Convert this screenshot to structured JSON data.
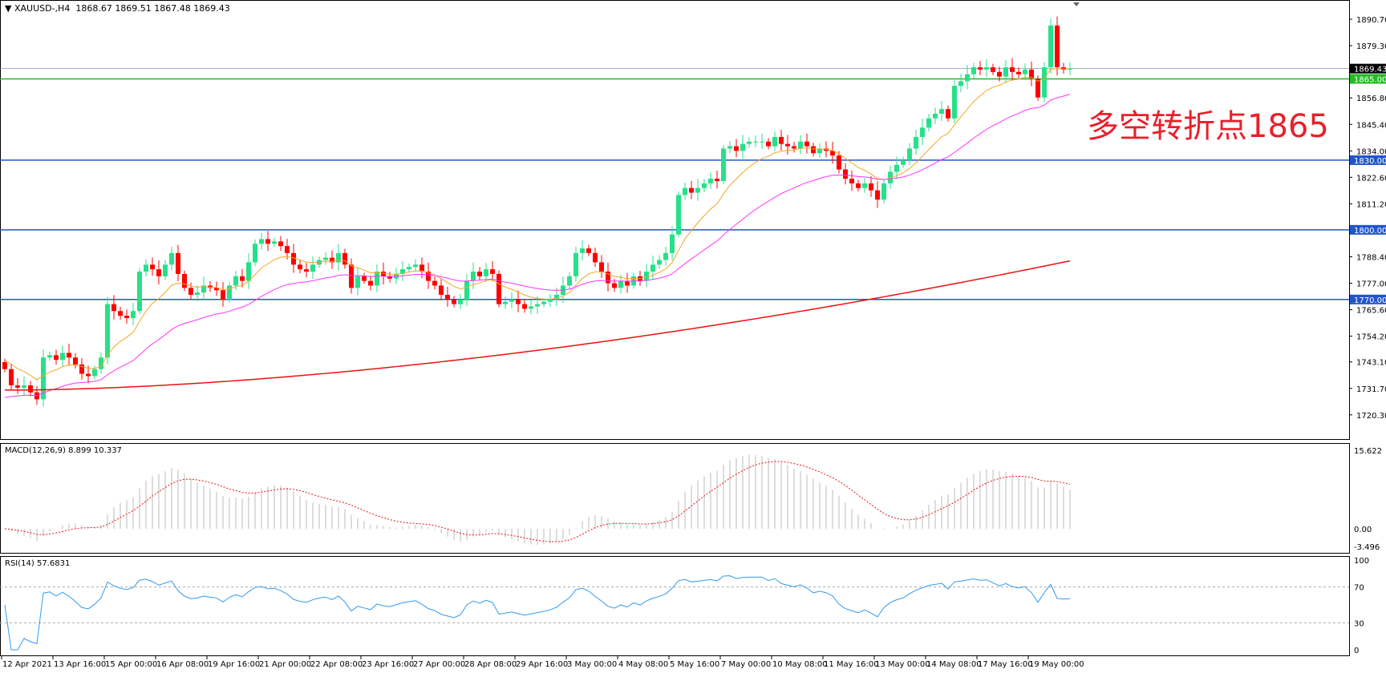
{
  "header": {
    "symbol": "XAUUSD-,H4",
    "ohlc": "1868.67 1869.51 1867.48 1869.43",
    "menu_icon": "triangle-down-icon"
  },
  "annotation": "多空转折点1865",
  "colors": {
    "bull": "#26e08a",
    "bear": "#ff0000",
    "ma_fast": "#f5a623",
    "ma_mid": "#ff33ff",
    "ma_slow": "#ee1111",
    "support": "#2255cc",
    "pivot": "#22bb22",
    "rsi": "#3399ee",
    "macd_signal": "#ee1111",
    "macd_hist": "#bbbbbb"
  },
  "price_axis": {
    "ticks": [
      "1890.70",
      "1879.30",
      "1856.80",
      "1845.40",
      "1834.00",
      "1822.60",
      "1811.20",
      "1788.40",
      "1777.00",
      "1765.60",
      "1754.20",
      "1743.10",
      "1731.70",
      "1720.30"
    ],
    "current_price": "1869.43"
  },
  "levels": [
    {
      "value": 1865,
      "label": "1865.00",
      "type": "pivot"
    },
    {
      "value": 1830,
      "label": "1830.00",
      "type": "support"
    },
    {
      "value": 1800,
      "label": "1800.00",
      "type": "support"
    },
    {
      "value": 1770,
      "label": "1770.00",
      "type": "support"
    }
  ],
  "macd": {
    "label": "MACD(12,26,9) 8.899 10.337",
    "ticks": [
      "15.622",
      "0.00",
      "-3.496"
    ]
  },
  "rsi": {
    "label": "RSI(14) 57.6831",
    "ticks": [
      "100",
      "70",
      "30",
      "0"
    ]
  },
  "time_axis": [
    "12 Apr 2021",
    "13 Apr 16:00",
    "15 Apr 00:00",
    "16 Apr 08:00",
    "19 Apr 16:00",
    "21 Apr 00:00",
    "22 Apr 08:00",
    "23 Apr 16:00",
    "27 Apr 00:00",
    "28 Apr 08:00",
    "29 Apr 16:00",
    "3 May 00:00",
    "4 May 08:00",
    "5 May 16:00",
    "7 May 00:00",
    "10 May 08:00",
    "11 May 16:00",
    "13 May 00:00",
    "14 May 08:00",
    "17 May 16:00",
    "19 May 00:00"
  ],
  "chart_data": {
    "type": "candlestick",
    "timeframe": "H4",
    "ylim": [
      1720.3,
      1890.7
    ],
    "closes": [
      1740,
      1733,
      1732,
      1733,
      1730,
      1727,
      1745,
      1746,
      1744,
      1747,
      1745,
      1742,
      1738,
      1737,
      1740,
      1745,
      1768,
      1765,
      1763,
      1762,
      1765,
      1782,
      1785,
      1783,
      1780,
      1785,
      1790,
      1781,
      1775,
      1772,
      1773,
      1776,
      1775,
      1774,
      1770,
      1776,
      1780,
      1778,
      1786,
      1794,
      1796,
      1794,
      1795,
      1793,
      1790,
      1785,
      1783,
      1782,
      1785,
      1787,
      1788,
      1786,
      1790,
      1785,
      1775,
      1780,
      1778,
      1776,
      1782,
      1780,
      1779,
      1781,
      1783,
      1784,
      1785,
      1782,
      1778,
      1776,
      1772,
      1770,
      1768,
      1770,
      1778,
      1782,
      1780,
      1783,
      1781,
      1768,
      1769,
      1770,
      1768,
      1766,
      1767,
      1768,
      1769,
      1770,
      1772,
      1776,
      1780,
      1790,
      1792,
      1790,
      1786,
      1782,
      1777,
      1775,
      1778,
      1776,
      1780,
      1778,
      1782,
      1785,
      1787,
      1790,
      1798,
      1815,
      1818,
      1816,
      1818,
      1820,
      1822,
      1821,
      1835,
      1836,
      1834,
      1837,
      1838,
      1838,
      1838,
      1836,
      1840,
      1837,
      1836,
      1835,
      1838,
      1836,
      1833,
      1835,
      1834,
      1832,
      1826,
      1822,
      1820,
      1818,
      1820,
      1817,
      1813,
      1820,
      1825,
      1828,
      1830,
      1835,
      1840,
      1844,
      1848,
      1850,
      1852,
      1848,
      1862,
      1864,
      1867,
      1870,
      1869,
      1870,
      1868,
      1866,
      1870,
      1868,
      1867,
      1869,
      1865,
      1857,
      1870,
      1888,
      1870,
      1869,
      1869.43
    ]
  }
}
